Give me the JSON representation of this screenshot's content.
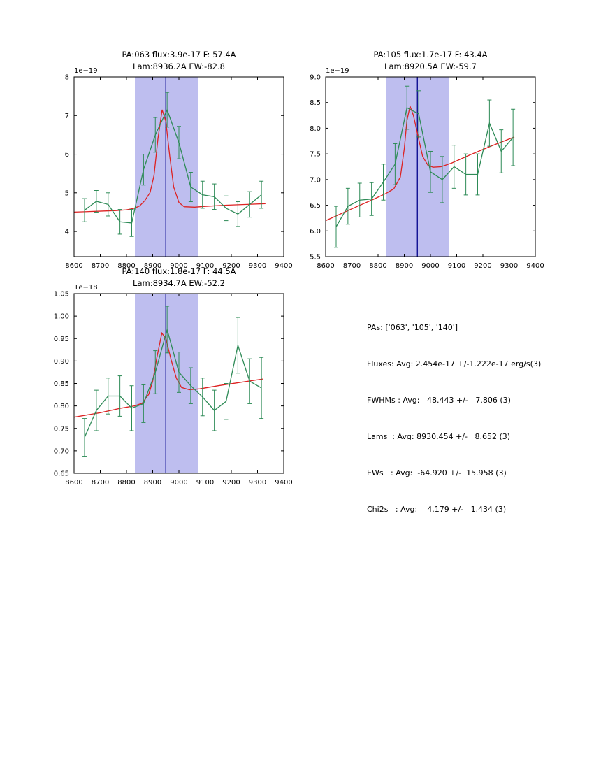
{
  "figure": {
    "background": "#ffffff"
  },
  "colors": {
    "data": "#2e8b57",
    "fit": "#dd2222",
    "band": "#bebeef",
    "vline": "#00008b",
    "axis": "#000000"
  },
  "stats_panel": {
    "lines": [
      "PAs: ['063', '105', '140']",
      "Fluxes: Avg: 2.454e-17 +/-1.222e-17 erg/s(3)",
      "FWHMs : Avg:   48.443 +/-   7.806 (3)",
      "Lams  : Avg: 8930.454 +/-   8.652 (3)",
      "EWs   : Avg:  -64.920 +/-  15.958 (3)",
      "Chi2s   : Avg:    4.179 +/-   1.434 (3)"
    ]
  },
  "chart_data": [
    {
      "name": "chart-pa063",
      "type": "line",
      "title_line1": "PA:063 flux:3.9e-17 F: 57.4A",
      "title_line2": "Lam:8936.2A EW:-82.8",
      "offset_label": "1e−19",
      "xlabel": "",
      "ylabel": "",
      "xlim": [
        8600,
        9400
      ],
      "ylim": [
        3.35,
        8.0
      ],
      "xticks": [
        8600,
        8700,
        8800,
        8900,
        9000,
        9100,
        9200,
        9300,
        9400
      ],
      "xtick_labels": [
        "8600",
        "8700",
        "8800",
        "8900",
        "9000",
        "9100",
        "9200",
        "9300",
        "9400"
      ],
      "yticks": [
        4,
        5,
        6,
        7,
        8
      ],
      "ytick_labels": [
        "4",
        "5",
        "6",
        "7",
        "8"
      ],
      "band": [
        8832,
        9072
      ],
      "vline": 8950,
      "series": [
        {
          "name": "gaussian-fit",
          "role": "fit",
          "x": [
            8600,
            8680,
            8760,
            8800,
            8830,
            8850,
            8870,
            8890,
            8905,
            8920,
            8936,
            8950,
            8965,
            8980,
            9000,
            9020,
            9060,
            9100,
            9180,
            9260,
            9330
          ],
          "y": [
            4.5,
            4.52,
            4.54,
            4.56,
            4.6,
            4.66,
            4.8,
            5.01,
            5.45,
            6.4,
            7.15,
            6.85,
            5.95,
            5.15,
            4.75,
            4.64,
            4.63,
            4.65,
            4.68,
            4.7,
            4.72
          ]
        },
        {
          "name": "spectrum",
          "role": "data",
          "x": [
            8640,
            8685,
            8730,
            8775,
            8820,
            8865,
            8910,
            8955,
            9000,
            9045,
            9090,
            9135,
            9180,
            9225,
            9270,
            9315
          ],
          "y": [
            4.55,
            4.78,
            4.7,
            4.25,
            4.22,
            5.6,
            6.5,
            7.15,
            6.3,
            5.15,
            4.95,
            4.9,
            4.6,
            4.45,
            4.7,
            4.95
          ],
          "yerr": [
            0.3,
            0.28,
            0.3,
            0.32,
            0.35,
            0.4,
            0.45,
            0.45,
            0.42,
            0.38,
            0.35,
            0.33,
            0.32,
            0.32,
            0.33,
            0.35
          ]
        }
      ]
    },
    {
      "name": "chart-pa105",
      "type": "line",
      "title_line1": "PA:105 flux:1.7e-17 F: 43.4A",
      "title_line2": "Lam:8920.5A EW:-59.7",
      "offset_label": "1e−19",
      "xlabel": "",
      "ylabel": "",
      "xlim": [
        8600,
        9400
      ],
      "ylim": [
        5.5,
        9.0
      ],
      "xticks": [
        8600,
        8700,
        8800,
        8900,
        9000,
        9100,
        9200,
        9300,
        9400
      ],
      "xtick_labels": [
        "8600",
        "8700",
        "8800",
        "8900",
        "9000",
        "9100",
        "9200",
        "9300",
        "9400"
      ],
      "yticks": [
        5.5,
        6.0,
        6.5,
        7.0,
        7.5,
        8.0,
        8.5,
        9.0
      ],
      "ytick_labels": [
        "5.5",
        "6.0",
        "6.5",
        "7.0",
        "7.5",
        "8.0",
        "8.5",
        "9.0"
      ],
      "band": [
        8832,
        9072
      ],
      "vline": 8950,
      "series": [
        {
          "name": "gaussian-fit",
          "role": "fit",
          "x": [
            8600,
            8700,
            8780,
            8830,
            8860,
            8885,
            8900,
            8910,
            8922,
            8935,
            8950,
            8970,
            8990,
            9010,
            9040,
            9080,
            9150,
            9230,
            9320
          ],
          "y": [
            6.2,
            6.43,
            6.61,
            6.73,
            6.82,
            7.05,
            7.6,
            8.15,
            8.43,
            8.25,
            7.9,
            7.45,
            7.28,
            7.24,
            7.25,
            7.32,
            7.48,
            7.65,
            7.83
          ]
        },
        {
          "name": "spectrum",
          "role": "data",
          "x": [
            8640,
            8685,
            8730,
            8775,
            8820,
            8865,
            8910,
            8955,
            9000,
            9045,
            9090,
            9135,
            9180,
            9225,
            9270,
            9315
          ],
          "y": [
            6.08,
            6.48,
            6.6,
            6.62,
            6.95,
            7.3,
            8.4,
            8.28,
            7.15,
            7.0,
            7.25,
            7.1,
            7.1,
            8.1,
            7.55,
            7.82
          ],
          "yerr": [
            0.4,
            0.35,
            0.33,
            0.32,
            0.35,
            0.4,
            0.42,
            0.45,
            0.4,
            0.45,
            0.42,
            0.4,
            0.4,
            0.45,
            0.42,
            0.55
          ]
        }
      ]
    },
    {
      "name": "chart-pa140",
      "type": "line",
      "title_line1": "PA:140 flux:1.8e-17 F: 44.5A",
      "title_line2": "Lam:8934.7A EW:-52.2",
      "offset_label": "1e−18",
      "xlabel": "",
      "ylabel": "",
      "xlim": [
        8600,
        9400
      ],
      "ylim": [
        0.65,
        1.05
      ],
      "xticks": [
        8600,
        8700,
        8800,
        8900,
        9000,
        9100,
        9200,
        9300,
        9400
      ],
      "xtick_labels": [
        "8600",
        "8700",
        "8800",
        "8900",
        "9000",
        "9100",
        "9200",
        "9300",
        "9400"
      ],
      "yticks": [
        0.65,
        0.7,
        0.75,
        0.8,
        0.85,
        0.9,
        0.95,
        1.0,
        1.05
      ],
      "ytick_labels": [
        "0.65",
        "0.70",
        "0.75",
        "0.80",
        "0.85",
        "0.90",
        "0.95",
        "1.00",
        "1.05"
      ],
      "band": [
        8832,
        9072
      ],
      "vline": 8950,
      "series": [
        {
          "name": "gaussian-fit",
          "role": "fit",
          "x": [
            8600,
            8700,
            8780,
            8830,
            8860,
            8885,
            8900,
            8915,
            8935,
            8950,
            8970,
            8990,
            9010,
            9040,
            9080,
            9150,
            9230,
            9320
          ],
          "y": [
            0.775,
            0.785,
            0.795,
            0.8,
            0.806,
            0.826,
            0.855,
            0.905,
            0.962,
            0.95,
            0.903,
            0.862,
            0.841,
            0.836,
            0.838,
            0.845,
            0.852,
            0.86
          ]
        },
        {
          "name": "spectrum",
          "role": "data",
          "x": [
            8640,
            8685,
            8730,
            8775,
            8820,
            8865,
            8910,
            8955,
            9000,
            9045,
            9090,
            9135,
            9180,
            9225,
            9270,
            9315
          ],
          "y": [
            0.73,
            0.79,
            0.822,
            0.822,
            0.795,
            0.805,
            0.875,
            0.97,
            0.875,
            0.845,
            0.82,
            0.79,
            0.81,
            0.935,
            0.855,
            0.84
          ],
          "yerr": [
            0.042,
            0.045,
            0.04,
            0.045,
            0.05,
            0.042,
            0.048,
            0.052,
            0.045,
            0.04,
            0.042,
            0.045,
            0.04,
            0.062,
            0.05,
            0.068
          ]
        }
      ]
    }
  ]
}
